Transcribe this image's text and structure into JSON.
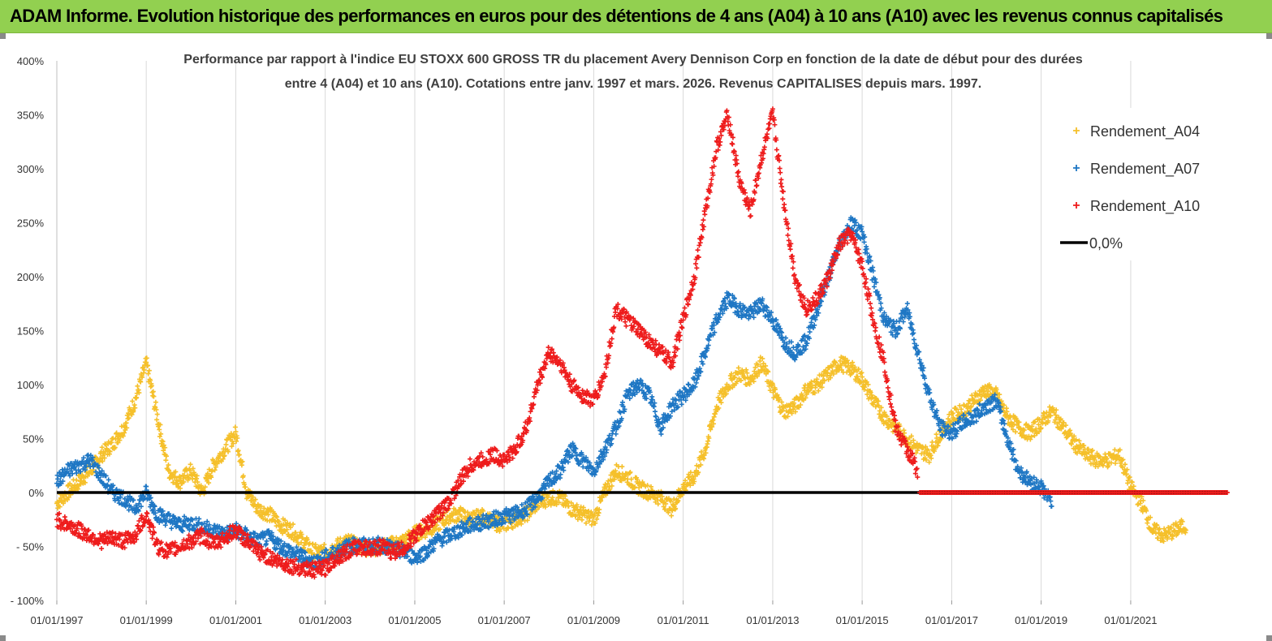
{
  "header": {
    "title": "ADAM Informe. Evolution historique des performances en euros pour des détentions de 4 ans (A04) à 10 ans (A10) avec les revenus connus capitalisés"
  },
  "colors": {
    "banner": "#92d050",
    "A04": "#f5c02b",
    "A07": "#1f77c4",
    "A10": "#ee1c1c",
    "zero_line": "#000000"
  },
  "chart_data": {
    "type": "scatter",
    "title_line1": "Performance par rapport à l'indice EU STOXX 600 GROSS TR  du placement Avery Dennison Corp en fonction de la date de début pour des durées",
    "title_line2": "entre 4 (A04) et 10 ans (A10). Cotations entre janv. 1997 et mars. 2026. Revenus CAPITALISES depuis mars. 1997.",
    "xlabel": "",
    "ylabel": "",
    "x_range": [
      "1997-01-01",
      "2023-03-01"
    ],
    "ylim": [
      -100,
      400
    ],
    "y_ticks": [
      "400%",
      "350%",
      "300%",
      "250%",
      "200%",
      "150%",
      "100%",
      "50%",
      "0%",
      "- 50%",
      "- 100%"
    ],
    "x_ticks": [
      "01/01/1997",
      "01/01/1999",
      "01/01/2001",
      "01/01/2003",
      "01/01/2005",
      "01/01/2007",
      "01/01/2009",
      "01/01/2011",
      "01/01/2013",
      "01/01/2015",
      "01/01/2017",
      "01/01/2019",
      "01/01/2021"
    ],
    "grid": "vertical",
    "legend_position": "top-right",
    "marker": "+",
    "series": [
      {
        "name": "Rendement_A04",
        "x": [
          "1997-01-01",
          "1997-04-01",
          "1997-07-01",
          "1997-10-01",
          "1998-01-01",
          "1998-04-01",
          "1998-07-01",
          "1998-10-01",
          "1999-01-01",
          "1999-04-01",
          "1999-07-01",
          "1999-10-01",
          "2000-01-01",
          "2000-04-01",
          "2000-07-01",
          "2000-10-01",
          "2001-01-01",
          "2001-04-01",
          "2001-07-01",
          "2001-10-01",
          "2002-01-01",
          "2002-04-01",
          "2002-07-01",
          "2002-10-01",
          "2003-01-01",
          "2003-04-01",
          "2003-07-01",
          "2003-10-01",
          "2004-01-01",
          "2004-04-01",
          "2004-07-01",
          "2004-10-01",
          "2005-01-01",
          "2005-04-01",
          "2005-07-01",
          "2005-10-01",
          "2006-01-01",
          "2006-04-01",
          "2006-07-01",
          "2006-10-01",
          "2007-01-01",
          "2007-04-01",
          "2007-07-01",
          "2007-10-01",
          "2008-01-01",
          "2008-04-01",
          "2008-07-01",
          "2008-10-01",
          "2009-01-01",
          "2009-04-01",
          "2009-07-01",
          "2009-10-01",
          "2010-01-01",
          "2010-04-01",
          "2010-07-01",
          "2010-10-01",
          "2011-01-01",
          "2011-04-01",
          "2011-07-01",
          "2011-10-01",
          "2012-01-01",
          "2012-04-01",
          "2012-07-01",
          "2012-10-01",
          "2013-01-01",
          "2013-04-01",
          "2013-07-01",
          "2013-10-01",
          "2014-01-01",
          "2014-04-01",
          "2014-07-01",
          "2014-10-01",
          "2015-01-01",
          "2015-04-01",
          "2015-07-01",
          "2015-10-01",
          "2016-01-01",
          "2016-04-01",
          "2016-07-01",
          "2016-10-01",
          "2017-01-01",
          "2017-04-01",
          "2017-07-01",
          "2017-10-01",
          "2018-01-01",
          "2018-04-01",
          "2018-07-01",
          "2018-10-01",
          "2019-01-01",
          "2019-04-01",
          "2019-07-01",
          "2019-10-01",
          "2020-01-01",
          "2020-04-01",
          "2020-07-01",
          "2020-10-01",
          "2021-01-01",
          "2021-04-01",
          "2021-07-01",
          "2021-10-01",
          "2022-01-01",
          "2022-04-01"
        ],
        "y": [
          -10,
          0,
          10,
          20,
          35,
          45,
          60,
          85,
          120,
          70,
          20,
          10,
          20,
          0,
          25,
          40,
          55,
          0,
          -15,
          -20,
          -30,
          -35,
          -45,
          -55,
          -55,
          -50,
          -45,
          -50,
          -52,
          -50,
          -48,
          -45,
          -38,
          -35,
          -30,
          -22,
          -20,
          -25,
          -22,
          -28,
          -30,
          -25,
          -20,
          -10,
          -5,
          -5,
          -15,
          -20,
          -25,
          0,
          20,
          15,
          5,
          0,
          -5,
          -15,
          5,
          15,
          40,
          80,
          100,
          110,
          105,
          120,
          95,
          75,
          80,
          95,
          100,
          110,
          120,
          115,
          105,
          85,
          70,
          60,
          50,
          40,
          35,
          55,
          70,
          75,
          85,
          95,
          90,
          70,
          60,
          55,
          65,
          75,
          60,
          45,
          35,
          30,
          30,
          35,
          5,
          -10,
          -35,
          -40,
          -35,
          -30
        ]
      },
      {
        "name": "Rendement_A07",
        "x": [
          "1997-01-01",
          "1997-04-01",
          "1997-07-01",
          "1997-10-01",
          "1998-01-01",
          "1998-04-01",
          "1998-07-01",
          "1998-10-01",
          "1999-01-01",
          "1999-04-01",
          "1999-07-01",
          "1999-10-01",
          "2000-01-01",
          "2000-04-01",
          "2000-07-01",
          "2000-10-01",
          "2001-01-01",
          "2001-04-01",
          "2001-07-01",
          "2001-10-01",
          "2002-01-01",
          "2002-04-01",
          "2002-07-01",
          "2002-10-01",
          "2003-01-01",
          "2003-04-01",
          "2003-07-01",
          "2003-10-01",
          "2004-01-01",
          "2004-04-01",
          "2004-07-01",
          "2004-10-01",
          "2005-01-01",
          "2005-04-01",
          "2005-07-01",
          "2005-10-01",
          "2006-01-01",
          "2006-04-01",
          "2006-07-01",
          "2006-10-01",
          "2007-01-01",
          "2007-04-01",
          "2007-07-01",
          "2007-10-01",
          "2008-01-01",
          "2008-04-01",
          "2008-07-01",
          "2008-10-01",
          "2009-01-01",
          "2009-04-01",
          "2009-07-01",
          "2009-10-01",
          "2010-01-01",
          "2010-04-01",
          "2010-07-01",
          "2010-10-01",
          "2011-01-01",
          "2011-04-01",
          "2011-07-01",
          "2011-10-01",
          "2012-01-01",
          "2012-04-01",
          "2012-07-01",
          "2012-10-01",
          "2013-01-01",
          "2013-04-01",
          "2013-07-01",
          "2013-10-01",
          "2014-01-01",
          "2014-04-01",
          "2014-07-01",
          "2014-10-01",
          "2015-01-01",
          "2015-04-01",
          "2015-07-01",
          "2015-10-01",
          "2016-01-01",
          "2016-04-01",
          "2016-07-01",
          "2016-10-01",
          "2017-01-01",
          "2017-04-01",
          "2017-07-01",
          "2017-10-01",
          "2018-01-01",
          "2018-04-01",
          "2018-07-01",
          "2018-10-01",
          "2019-01-01",
          "2019-04-01"
        ],
        "y": [
          10,
          20,
          25,
          30,
          15,
          0,
          -5,
          -15,
          0,
          -20,
          -25,
          -30,
          -28,
          -32,
          -35,
          -38,
          -35,
          -40,
          -45,
          -42,
          -50,
          -55,
          -60,
          -65,
          -60,
          -55,
          -50,
          -48,
          -50,
          -48,
          -52,
          -55,
          -60,
          -55,
          -45,
          -40,
          -35,
          -30,
          -28,
          -25,
          -22,
          -20,
          -15,
          -5,
          10,
          20,
          40,
          30,
          20,
          40,
          60,
          90,
          100,
          90,
          60,
          80,
          90,
          100,
          130,
          160,
          180,
          170,
          165,
          175,
          160,
          140,
          130,
          140,
          170,
          200,
          230,
          250,
          240,
          200,
          160,
          150,
          170,
          130,
          90,
          60,
          55,
          65,
          70,
          80,
          85,
          50,
          20,
          10,
          5,
          -10
        ]
      },
      {
        "name": "Rendement_A10",
        "x": [
          "1997-01-01",
          "1997-04-01",
          "1997-07-01",
          "1997-10-01",
          "1998-01-01",
          "1998-04-01",
          "1998-07-01",
          "1998-10-01",
          "1999-01-01",
          "1999-04-01",
          "1999-07-01",
          "1999-10-01",
          "2000-01-01",
          "2000-04-01",
          "2000-07-01",
          "2000-10-01",
          "2001-01-01",
          "2001-04-01",
          "2001-07-01",
          "2001-10-01",
          "2002-01-01",
          "2002-04-01",
          "2002-07-01",
          "2002-10-01",
          "2003-01-01",
          "2003-04-01",
          "2003-07-01",
          "2003-10-01",
          "2004-01-01",
          "2004-04-01",
          "2004-07-01",
          "2004-10-01",
          "2005-01-01",
          "2005-04-01",
          "2005-07-01",
          "2005-10-01",
          "2006-01-01",
          "2006-04-01",
          "2006-07-01",
          "2006-10-01",
          "2007-01-01",
          "2007-04-01",
          "2007-07-01",
          "2007-10-01",
          "2008-01-01",
          "2008-04-01",
          "2008-07-01",
          "2008-10-01",
          "2009-01-01",
          "2009-04-01",
          "2009-07-01",
          "2009-10-01",
          "2010-01-01",
          "2010-04-01",
          "2010-07-01",
          "2010-10-01",
          "2011-01-01",
          "2011-04-01",
          "2011-07-01",
          "2011-10-01",
          "2012-01-01",
          "2012-04-01",
          "2012-07-01",
          "2012-10-01",
          "2013-01-01",
          "2013-04-01",
          "2013-07-01",
          "2013-10-01",
          "2014-01-01",
          "2014-04-01",
          "2014-07-01",
          "2014-10-01",
          "2015-01-01",
          "2015-04-01",
          "2015-07-01",
          "2015-10-01",
          "2016-01-01",
          "2016-04-01"
        ],
        "y": [
          -25,
          -30,
          -35,
          -40,
          -45,
          -42,
          -45,
          -40,
          -20,
          -50,
          -55,
          -50,
          -45,
          -40,
          -48,
          -42,
          -35,
          -45,
          -55,
          -60,
          -65,
          -68,
          -70,
          -72,
          -70,
          -60,
          -55,
          -50,
          -52,
          -50,
          -55,
          -52,
          -40,
          -30,
          -20,
          -10,
          10,
          25,
          30,
          35,
          30,
          40,
          60,
          100,
          130,
          120,
          100,
          90,
          85,
          110,
          170,
          160,
          150,
          140,
          130,
          120,
          160,
          200,
          260,
          320,
          350,
          290,
          260,
          310,
          350,
          270,
          200,
          170,
          180,
          200,
          230,
          240,
          210,
          160,
          120,
          60,
          40,
          20
        ]
      },
      {
        "name": "Rendement_A10",
        "x": [
          "2016-04-15",
          "2016-10-01",
          "2017-04-01",
          "2017-10-01",
          "2018-04-01",
          "2018-10-01",
          "2019-04-01",
          "2019-10-01",
          "2020-04-01",
          "2020-10-01",
          "2021-04-01",
          "2021-10-01",
          "2022-04-01",
          "2022-10-01",
          "2023-03-01"
        ],
        "y": [
          0,
          0,
          0,
          0,
          0,
          0,
          0,
          0,
          0,
          0,
          0,
          0,
          0,
          0,
          0
        ]
      }
    ],
    "legend": [
      "Rendement_A04",
      "Rendement_A07",
      "Rendement_A10",
      "0,0%"
    ],
    "reference_line": {
      "name": "0,0%",
      "y": 0
    }
  }
}
